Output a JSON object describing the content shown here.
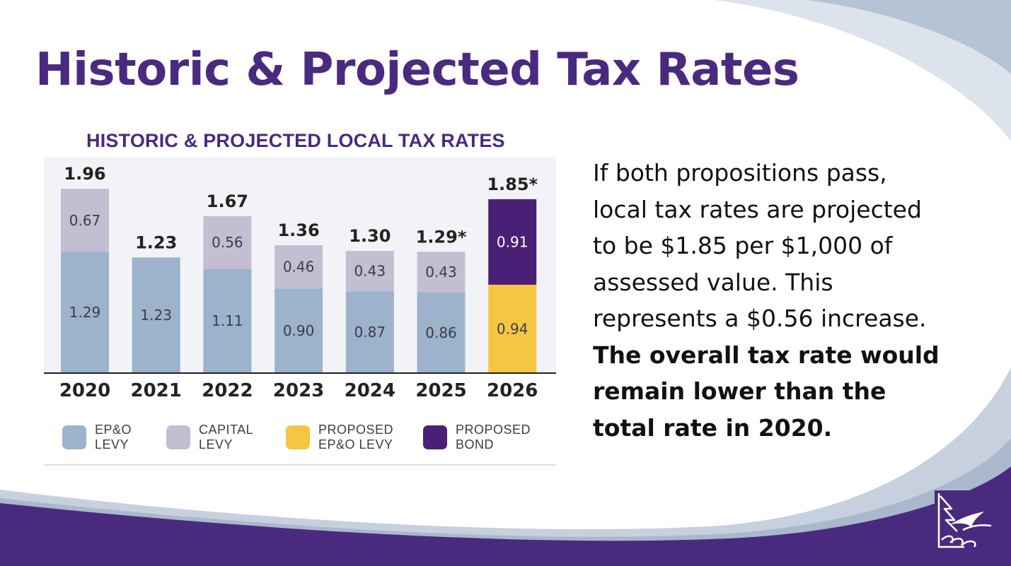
{
  "slide": {
    "title": "Historic & Projected Tax Rates",
    "description_regular": "If both propositions pass, local tax rates are projected to be $1.85 per $1,000 of assessed value. This represents a $0.56 increase.",
    "description_bold": "The overall tax rate would remain lower than the total rate in 2020."
  },
  "colors": {
    "title": "#4a2a7f",
    "epo_levy": "#9db2cb",
    "capital_levy": "#c4bed2",
    "proposed_epo_levy": "#f6c544",
    "proposed_bond": "#4a2077",
    "footer": "#4a2a7f"
  },
  "logo": {
    "icon": "seattle-district-logo-icon"
  },
  "chart_data": {
    "type": "bar",
    "stacked": true,
    "title": "HISTORIC & PROJECTED LOCAL TAX RATES",
    "categories": [
      "2020",
      "2021",
      "2022",
      "2023",
      "2024",
      "2025",
      "2026"
    ],
    "series": [
      {
        "name": "EP&O LEVY",
        "color": "#9db2cb",
        "values": [
          1.29,
          1.23,
          1.11,
          0.9,
          0.87,
          0.86,
          null
        ],
        "labels": [
          "1.29",
          "1.23",
          "1.11",
          "0.90",
          "0.87",
          "0.86",
          ""
        ]
      },
      {
        "name": "CAPITAL LEVY",
        "color": "#c4bed2",
        "values": [
          0.67,
          null,
          0.56,
          0.46,
          0.43,
          0.43,
          null
        ],
        "labels": [
          "0.67",
          "",
          "0.56",
          "0.46",
          "0.43",
          "0.43",
          ""
        ]
      },
      {
        "name": "PROPOSED EP&O LEVY",
        "color": "#f6c544",
        "values": [
          null,
          null,
          null,
          null,
          null,
          null,
          0.94
        ],
        "labels": [
          "",
          "",
          "",
          "",
          "",
          "",
          "0.94"
        ]
      },
      {
        "name": "PROPOSED BOND",
        "color": "#4a2077",
        "values": [
          null,
          null,
          null,
          null,
          null,
          null,
          0.91
        ],
        "labels": [
          "",
          "",
          "",
          "",
          "",
          "",
          "0.91"
        ]
      }
    ],
    "totals": [
      1.96,
      1.23,
      1.67,
      1.36,
      1.3,
      1.29,
      1.85
    ],
    "total_labels": [
      "1.96",
      "1.23",
      "1.67",
      "1.36",
      "1.30",
      "1.29*",
      "1.85*"
    ],
    "legend": [
      {
        "line1": "EP&O",
        "line2": "LEVY",
        "color": "#9db2cb"
      },
      {
        "line1": "CAPITAL",
        "line2": "LEVY",
        "color": "#c4bed2"
      },
      {
        "line1": "PROPOSED",
        "line2": "EP&O LEVY",
        "color": "#f6c544"
      },
      {
        "line1": "PROPOSED",
        "line2": "BOND",
        "color": "#4a2077"
      }
    ],
    "legend_position": "bottom",
    "grid": false,
    "ylim": [
      0,
      2.3
    ]
  }
}
